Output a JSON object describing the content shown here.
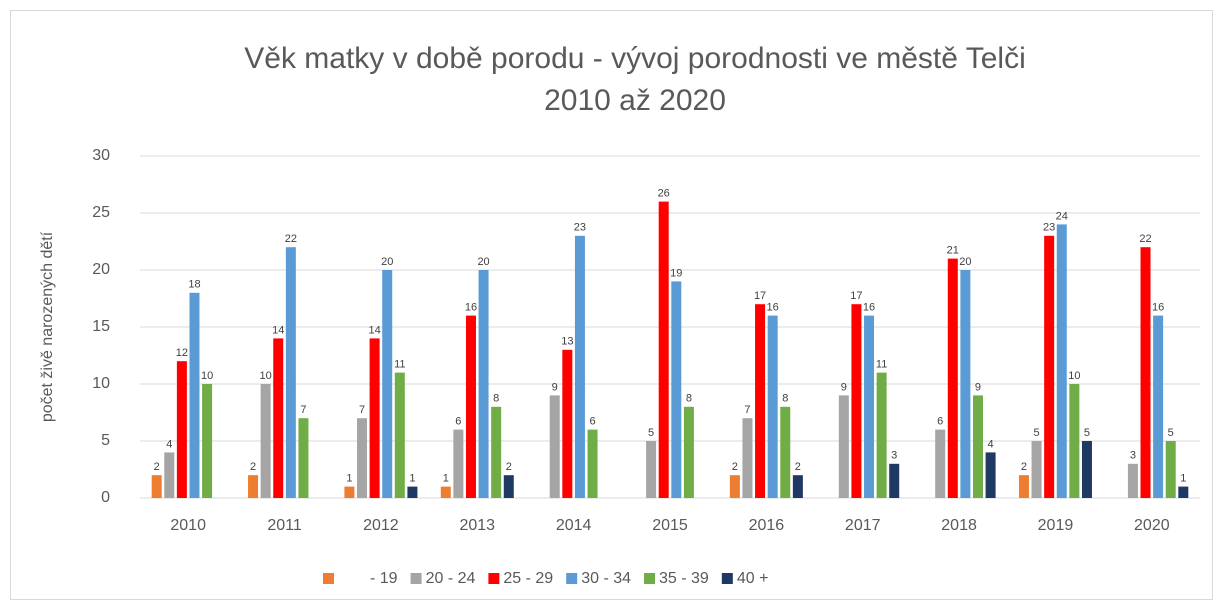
{
  "chart_data": {
    "type": "bar",
    "title": [
      "Věk matky v době porodu - vývoj porodnosti ve městě Telči",
      "2010 až 2020"
    ],
    "ylabel": "počet živě narozených dětí",
    "categories": [
      "2010",
      "2011",
      "2012",
      "2013",
      "2014",
      "2015",
      "2016",
      "2017",
      "2018",
      "2019",
      "2020"
    ],
    "series": [
      {
        "name": "- 19",
        "color": "#ed7d31",
        "values": [
          2,
          2,
          1,
          1,
          0,
          0,
          2,
          0,
          0,
          2,
          0
        ]
      },
      {
        "name": "20 - 24",
        "color": "#a5a5a5",
        "values": [
          4,
          10,
          7,
          6,
          9,
          5,
          7,
          9,
          6,
          5,
          3
        ]
      },
      {
        "name": "25 - 29",
        "color": "#ff0000",
        "values": [
          12,
          14,
          14,
          16,
          13,
          26,
          17,
          17,
          21,
          23,
          22
        ]
      },
      {
        "name": "30 - 34",
        "color": "#5b9bd5",
        "values": [
          18,
          22,
          20,
          20,
          23,
          19,
          16,
          16,
          20,
          24,
          16
        ]
      },
      {
        "name": "35 - 39",
        "color": "#70ad47",
        "values": [
          10,
          7,
          11,
          8,
          6,
          8,
          8,
          11,
          9,
          10,
          5
        ]
      },
      {
        "name": "40 +",
        "color": "#203864",
        "values": [
          0,
          0,
          1,
          2,
          0,
          0,
          2,
          3,
          4,
          5,
          1
        ]
      }
    ],
    "ylim": [
      0,
      30
    ],
    "yticks": [
      0,
      5,
      10,
      15,
      20,
      25,
      30
    ],
    "grid": true,
    "legend": "bottom"
  }
}
